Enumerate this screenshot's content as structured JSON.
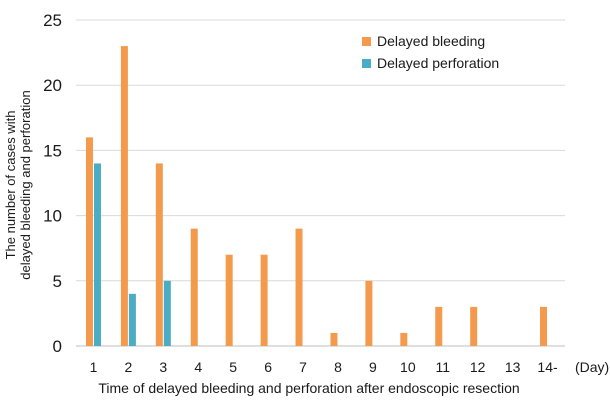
{
  "chart_data": {
    "type": "bar",
    "title": "",
    "xlabel": "Time of delayed bleeding and perforation after endoscopic resection",
    "ylabel_lines": [
      "The number of cases with",
      "delayed bleeding and perforation"
    ],
    "x_unit_label": "(Day)",
    "categories": [
      "1",
      "2",
      "3",
      "4",
      "5",
      "6",
      "7",
      "8",
      "9",
      "10",
      "11",
      "12",
      "13",
      "14-"
    ],
    "ylim": [
      0,
      25
    ],
    "yticks": [
      0,
      5,
      10,
      15,
      20,
      25
    ],
    "grid": "horizontal",
    "legend_position": "top-right",
    "series": [
      {
        "name": "Delayed bleeding",
        "color": "#F39A4C",
        "values": [
          16,
          23,
          14,
          9,
          7,
          7,
          9,
          1,
          5,
          1,
          3,
          3,
          0,
          3
        ]
      },
      {
        "name": "Delayed perforation",
        "color": "#4BACC6",
        "values": [
          14,
          4,
          5,
          0,
          0,
          0,
          0,
          0,
          0,
          0,
          0,
          0,
          0,
          0
        ]
      }
    ]
  }
}
